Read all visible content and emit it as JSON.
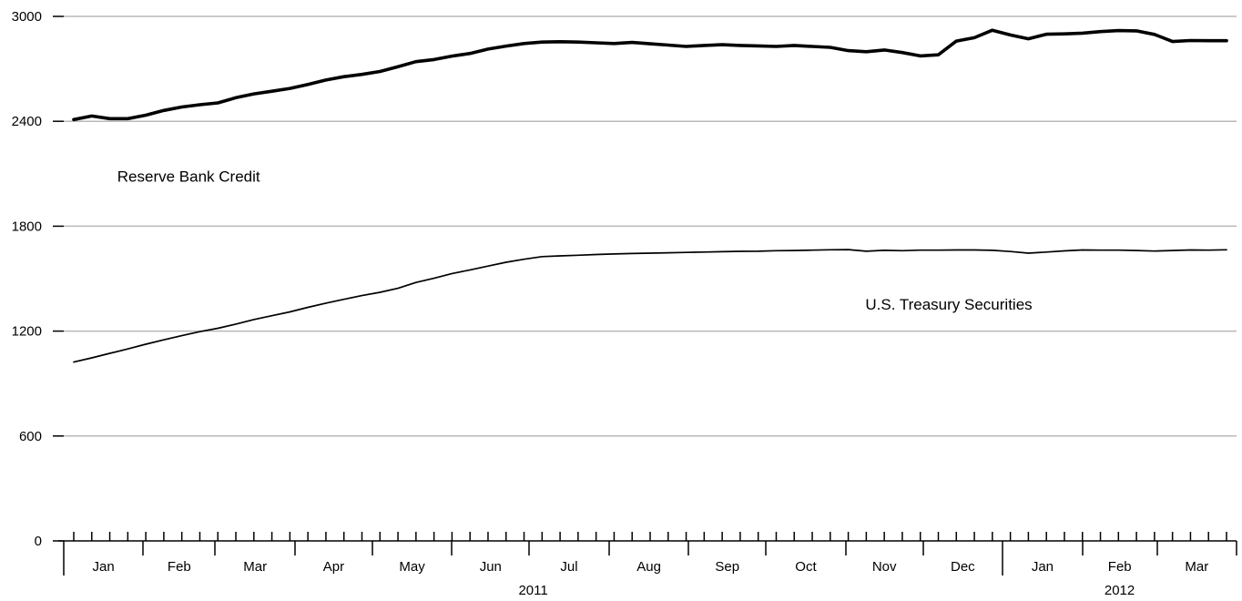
{
  "chart_data": {
    "type": "line",
    "title": "",
    "xlabel": "",
    "ylabel": "",
    "ylim": [
      0,
      3000
    ],
    "yticks": [
      0,
      600,
      1200,
      1800,
      2400,
      3000
    ],
    "grid": "horizontal",
    "legend": "inline labels",
    "x_range": [
      "2011-01-05",
      "2012-03-28"
    ],
    "months": [
      {
        "label": "Jan",
        "start": "2011-01-01",
        "end": "2011-02-01",
        "weeks": [
          "2011-01-05",
          "2011-01-12",
          "2011-01-19",
          "2011-01-26"
        ]
      },
      {
        "label": "Feb",
        "start": "2011-02-01",
        "end": "2011-03-01",
        "weeks": [
          "2011-02-02",
          "2011-02-09",
          "2011-02-16",
          "2011-02-23"
        ]
      },
      {
        "label": "Mar",
        "start": "2011-03-01",
        "end": "2011-04-01",
        "weeks": [
          "2011-03-02",
          "2011-03-09",
          "2011-03-16",
          "2011-03-23",
          "2011-03-30"
        ]
      },
      {
        "label": "Apr",
        "start": "2011-04-01",
        "end": "2011-05-01",
        "weeks": [
          "2011-04-06",
          "2011-04-13",
          "2011-04-20",
          "2011-04-27"
        ]
      },
      {
        "label": "May",
        "start": "2011-05-01",
        "end": "2011-06-01",
        "weeks": [
          "2011-05-04",
          "2011-05-11",
          "2011-05-18",
          "2011-05-25"
        ]
      },
      {
        "label": "Jun",
        "start": "2011-06-01",
        "end": "2011-07-01",
        "weeks": [
          "2011-06-01",
          "2011-06-08",
          "2011-06-15",
          "2011-06-22",
          "2011-06-29"
        ]
      },
      {
        "label": "Jul",
        "start": "2011-07-01",
        "end": "2011-08-01",
        "weeks": [
          "2011-07-06",
          "2011-07-13",
          "2011-07-20",
          "2011-07-27"
        ]
      },
      {
        "label": "Aug",
        "start": "2011-08-01",
        "end": "2011-09-01",
        "weeks": [
          "2011-08-03",
          "2011-08-10",
          "2011-08-17",
          "2011-08-24",
          "2011-08-31"
        ]
      },
      {
        "label": "Sep",
        "start": "2011-09-01",
        "end": "2011-10-01",
        "weeks": [
          "2011-09-07",
          "2011-09-14",
          "2011-09-21",
          "2011-09-28"
        ]
      },
      {
        "label": "Oct",
        "start": "2011-10-01",
        "end": "2011-11-01",
        "weeks": [
          "2011-10-05",
          "2011-10-12",
          "2011-10-19",
          "2011-10-26"
        ]
      },
      {
        "label": "Nov",
        "start": "2011-11-01",
        "end": "2011-12-01",
        "weeks": [
          "2011-11-02",
          "2011-11-09",
          "2011-11-16",
          "2011-11-23",
          "2011-11-30"
        ]
      },
      {
        "label": "Dec",
        "start": "2011-12-01",
        "end": "2012-01-01",
        "weeks": [
          "2011-12-07",
          "2011-12-14",
          "2011-12-21",
          "2011-12-28"
        ]
      },
      {
        "label": "Jan",
        "start": "2012-01-01",
        "end": "2012-02-01",
        "weeks": [
          "2012-01-04",
          "2012-01-11",
          "2012-01-18",
          "2012-01-25"
        ]
      },
      {
        "label": "Feb",
        "start": "2012-02-01",
        "end": "2012-03-01",
        "weeks": [
          "2012-02-01",
          "2012-02-08",
          "2012-02-15",
          "2012-02-22",
          "2012-02-29"
        ]
      },
      {
        "label": "Mar",
        "start": "2012-03-01",
        "end": "2012-04-01",
        "weeks": [
          "2012-03-07",
          "2012-03-14",
          "2012-03-21",
          "2012-03-28"
        ]
      }
    ],
    "years": [
      {
        "label": "2011",
        "start": "2011-01-01",
        "end": "2012-01-01"
      },
      {
        "label": "2012",
        "start": "2012-01-01",
        "end": "2012-04-01"
      }
    ],
    "x": [
      "2011-01-05",
      "2011-01-12",
      "2011-01-19",
      "2011-01-26",
      "2011-02-02",
      "2011-02-09",
      "2011-02-16",
      "2011-02-23",
      "2011-03-02",
      "2011-03-09",
      "2011-03-16",
      "2011-03-23",
      "2011-03-30",
      "2011-04-06",
      "2011-04-13",
      "2011-04-20",
      "2011-04-27",
      "2011-05-04",
      "2011-05-11",
      "2011-05-18",
      "2011-05-25",
      "2011-06-01",
      "2011-06-08",
      "2011-06-15",
      "2011-06-22",
      "2011-06-29",
      "2011-07-06",
      "2011-07-13",
      "2011-07-20",
      "2011-07-27",
      "2011-08-03",
      "2011-08-10",
      "2011-08-17",
      "2011-08-24",
      "2011-08-31",
      "2011-09-07",
      "2011-09-14",
      "2011-09-21",
      "2011-09-28",
      "2011-10-05",
      "2011-10-12",
      "2011-10-19",
      "2011-10-26",
      "2011-11-02",
      "2011-11-09",
      "2011-11-16",
      "2011-11-23",
      "2011-11-30",
      "2011-12-07",
      "2011-12-14",
      "2011-12-21",
      "2011-12-28",
      "2012-01-04",
      "2012-01-11",
      "2012-01-18",
      "2012-01-25",
      "2012-02-01",
      "2012-02-08",
      "2012-02-15",
      "2012-02-22",
      "2012-02-29",
      "2012-03-07",
      "2012-03-14",
      "2012-03-21",
      "2012-03-28"
    ],
    "series": [
      {
        "name": "Reserve Bank Credit",
        "color": "#000000",
        "weight": "heavy",
        "label_anchor": 1,
        "values": [
          2410,
          2430,
          2415,
          2415,
          2435,
          2462,
          2482,
          2495,
          2505,
          2535,
          2557,
          2572,
          2588,
          2611,
          2636,
          2655,
          2668,
          2685,
          2712,
          2741,
          2753,
          2773,
          2788,
          2813,
          2830,
          2845,
          2853,
          2855,
          2853,
          2849,
          2845,
          2851,
          2843,
          2836,
          2828,
          2834,
          2838,
          2834,
          2831,
          2828,
          2834,
          2828,
          2823,
          2804,
          2798,
          2808,
          2793,
          2774,
          2780,
          2859,
          2878,
          2921,
          2894,
          2872,
          2898,
          2900,
          2904,
          2913,
          2919,
          2917,
          2897,
          2856,
          2862,
          2861,
          2861
        ]
      },
      {
        "name": "U.S. Treasury Securities",
        "color": "#000000",
        "weight": "light",
        "label_anchor": 44,
        "values": [
          1023,
          1047,
          1073,
          1098,
          1125,
          1150,
          1174,
          1197,
          1216,
          1240,
          1266,
          1288,
          1310,
          1336,
          1360,
          1382,
          1403,
          1422,
          1445,
          1478,
          1502,
          1529,
          1550,
          1572,
          1594,
          1611,
          1626,
          1630,
          1634,
          1638,
          1641,
          1644,
          1646,
          1648,
          1650,
          1652,
          1654,
          1656,
          1657,
          1660,
          1661,
          1663,
          1665,
          1666,
          1657,
          1662,
          1660,
          1663,
          1663,
          1664,
          1664,
          1662,
          1655,
          1646,
          1652,
          1659,
          1664,
          1663,
          1663,
          1661,
          1658,
          1661,
          1664,
          1663,
          1665
        ]
      }
    ]
  }
}
